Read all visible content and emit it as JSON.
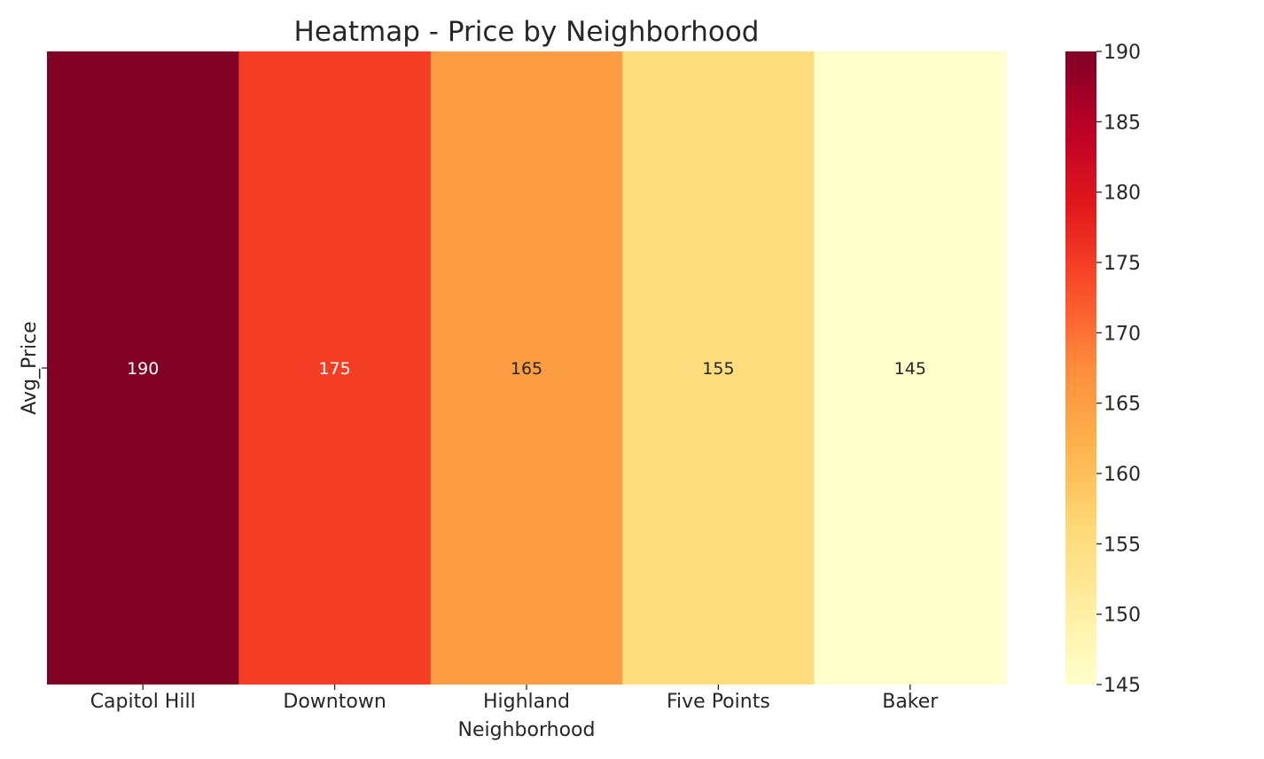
{
  "chart_data": {
    "type": "heatmap",
    "title": "Heatmap - Price by Neighborhood",
    "xlabel": "Neighborhood",
    "ylabel": "",
    "x_categories": [
      "Capitol Hill",
      "Downtown",
      "Highland",
      "Five Points",
      "Baker"
    ],
    "y_categories": [
      "Avg_Price"
    ],
    "values": [
      [
        190,
        175,
        165,
        155,
        145
      ]
    ],
    "colormap": "YlOrRd",
    "colorbar": {
      "min": 145,
      "max": 190,
      "ticks": [
        145,
        150,
        155,
        160,
        165,
        170,
        175,
        180,
        185,
        190
      ]
    },
    "annotations": true
  },
  "colors": {
    "text_dark": "#262626",
    "text_light": "#ffffff",
    "tick": "#262626"
  }
}
